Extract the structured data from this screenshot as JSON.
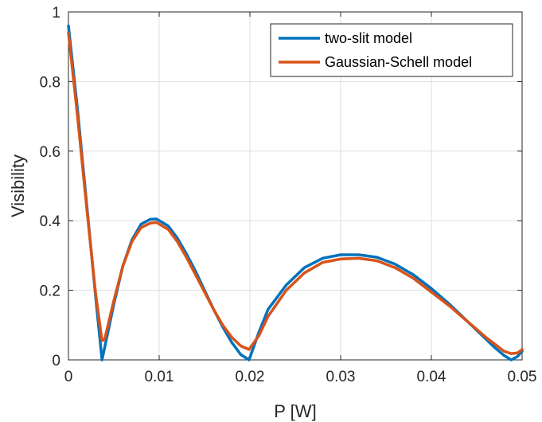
{
  "chart_data": {
    "type": "line",
    "xlabel": "P [W]",
    "ylabel": "Visibility",
    "xlim": [
      0,
      0.05
    ],
    "ylim": [
      0,
      1
    ],
    "xticks": [
      "0",
      "0.01",
      "0.02",
      "0.03",
      "0.04",
      "0.05"
    ],
    "yticks": [
      "0",
      "0.2",
      "0.4",
      "0.6",
      "0.8",
      "1"
    ],
    "grid": true,
    "legend_position": "top-right",
    "series": [
      {
        "name": "two-slit model",
        "color": "#0072BD",
        "x": [
          0,
          0.001,
          0.002,
          0.003,
          0.0037,
          0.005,
          0.006,
          0.007,
          0.008,
          0.009,
          0.0097,
          0.011,
          0.012,
          0.013,
          0.014,
          0.015,
          0.016,
          0.017,
          0.018,
          0.019,
          0.0199,
          0.021,
          0.022,
          0.024,
          0.026,
          0.028,
          0.03,
          0.032,
          0.034,
          0.036,
          0.038,
          0.04,
          0.042,
          0.044,
          0.046,
          0.047,
          0.048,
          0.0488,
          0.0495,
          0.05
        ],
        "y": [
          0.96,
          0.72,
          0.45,
          0.18,
          0.0,
          0.16,
          0.27,
          0.345,
          0.39,
          0.404,
          0.405,
          0.385,
          0.35,
          0.305,
          0.255,
          0.2,
          0.145,
          0.095,
          0.05,
          0.015,
          0.0,
          0.08,
          0.145,
          0.215,
          0.265,
          0.292,
          0.302,
          0.302,
          0.295,
          0.275,
          0.245,
          0.205,
          0.16,
          0.11,
          0.06,
          0.035,
          0.013,
          0.0,
          0.01,
          0.025
        ]
      },
      {
        "name": "Gaussian-Schell model",
        "color": "#D95319",
        "x": [
          0,
          0.001,
          0.002,
          0.003,
          0.0037,
          0.004,
          0.005,
          0.006,
          0.007,
          0.008,
          0.009,
          0.0097,
          0.011,
          0.012,
          0.013,
          0.014,
          0.015,
          0.016,
          0.017,
          0.018,
          0.019,
          0.0199,
          0.021,
          0.022,
          0.024,
          0.026,
          0.028,
          0.03,
          0.032,
          0.034,
          0.036,
          0.038,
          0.04,
          0.042,
          0.044,
          0.046,
          0.047,
          0.048,
          0.0488,
          0.0495,
          0.05
        ],
        "y": [
          0.94,
          0.7,
          0.44,
          0.19,
          0.055,
          0.06,
          0.17,
          0.27,
          0.34,
          0.38,
          0.393,
          0.395,
          0.375,
          0.34,
          0.295,
          0.245,
          0.195,
          0.145,
          0.1,
          0.065,
          0.04,
          0.03,
          0.07,
          0.125,
          0.2,
          0.25,
          0.28,
          0.29,
          0.292,
          0.285,
          0.265,
          0.235,
          0.195,
          0.155,
          0.11,
          0.065,
          0.045,
          0.025,
          0.018,
          0.02,
          0.03
        ]
      }
    ]
  }
}
